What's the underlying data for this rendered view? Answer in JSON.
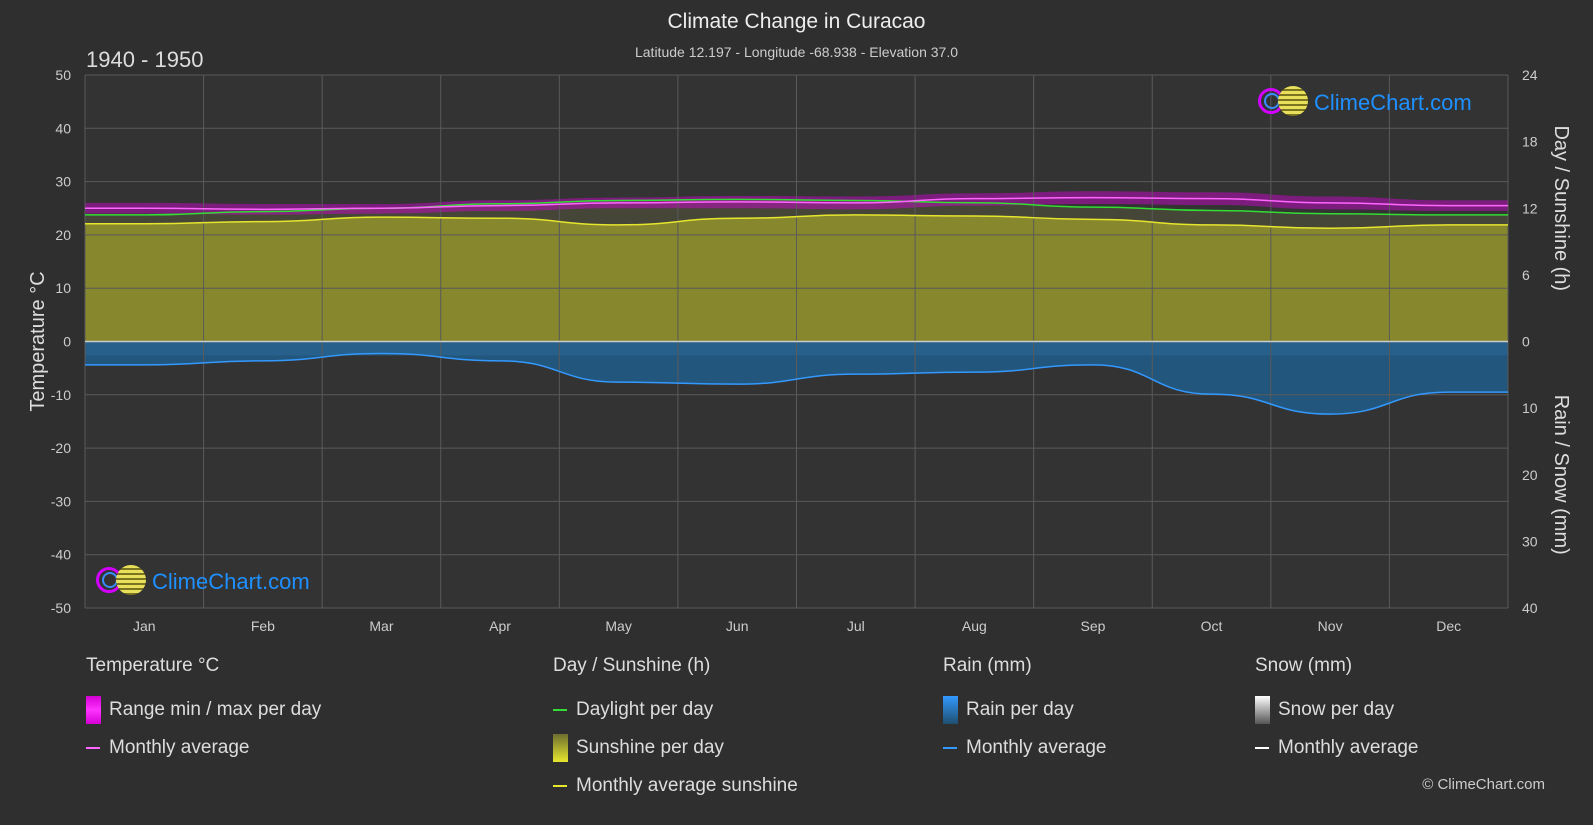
{
  "header": {
    "title": "Climate Change in Curacao",
    "subtitle": "Latitude 12.197 - Longitude -68.938 - Elevation 37.0",
    "period": "1940 - 1950"
  },
  "brand": {
    "text": "ClimeChart.com",
    "copyright": "© ClimeChart.com"
  },
  "chart_data": {
    "type": "area",
    "months": [
      "Jan",
      "Feb",
      "Mar",
      "Apr",
      "May",
      "Jun",
      "Jul",
      "Aug",
      "Sep",
      "Oct",
      "Nov",
      "Dec"
    ],
    "axes": {
      "left": {
        "label": "Temperature °C",
        "range": [
          -50,
          50
        ],
        "ticks": [
          50,
          40,
          30,
          20,
          10,
          0,
          -10,
          -20,
          -30,
          -40,
          -50
        ]
      },
      "right_top": {
        "label": "Day / Sunshine (h)",
        "range": [
          0,
          24
        ],
        "ticks": [
          24,
          18,
          12,
          6,
          0
        ]
      },
      "right_bottom": {
        "label": "Rain / Snow (mm)",
        "range": [
          0,
          40
        ],
        "ticks": [
          0,
          10,
          20,
          30,
          40
        ]
      }
    },
    "series": {
      "temperature_monthly_avg": [
        25.0,
        24.8,
        25.0,
        25.5,
        26.0,
        26.2,
        26.0,
        26.8,
        27.0,
        26.8,
        26.0,
        25.5
      ],
      "temperature_range_max": [
        26.0,
        25.8,
        25.8,
        26.5,
        27.0,
        27.3,
        27.2,
        27.8,
        28.2,
        28.0,
        27.2,
        26.5
      ],
      "temperature_range_min": [
        24.0,
        23.8,
        24.0,
        24.5,
        25.0,
        25.0,
        24.8,
        25.5,
        25.8,
        25.6,
        24.8,
        24.5
      ],
      "daylight_hours": [
        11.4,
        11.7,
        12.0,
        12.4,
        12.7,
        12.8,
        12.7,
        12.5,
        12.1,
        11.8,
        11.5,
        11.4
      ],
      "sunshine_hours": [
        10.6,
        10.8,
        11.2,
        11.1,
        10.5,
        11.1,
        11.4,
        11.3,
        11.0,
        10.5,
        10.2,
        10.5
      ],
      "rain_monthly_avg_mm": [
        3.5,
        2.9,
        1.8,
        2.9,
        6.1,
        6.4,
        4.9,
        4.6,
        3.5,
        7.9,
        10.9,
        7.6
      ]
    },
    "legend": {
      "temperature": {
        "title": "Temperature °C",
        "items": [
          "Range min / max per day",
          "Monthly average"
        ]
      },
      "sunshine": {
        "title": "Day / Sunshine (h)",
        "items": [
          "Daylight per day",
          "Sunshine per day",
          "Monthly average sunshine"
        ]
      },
      "rain": {
        "title": "Rain (mm)",
        "items": [
          "Rain per day",
          "Monthly average"
        ]
      },
      "snow": {
        "title": "Snow (mm)",
        "items": [
          "Snow per day",
          "Monthly average"
        ]
      }
    },
    "colors": {
      "temperature_range": "#d400d4",
      "temperature_avg": "#ff66ff",
      "daylight": "#33dd33",
      "sunshine_fill": "#8c8c2e",
      "sunshine_avg": "#e6e62e",
      "rain_fill": "#1f5f8f",
      "rain_avg": "#3399ff",
      "snow_avg": "#ffffff"
    }
  }
}
